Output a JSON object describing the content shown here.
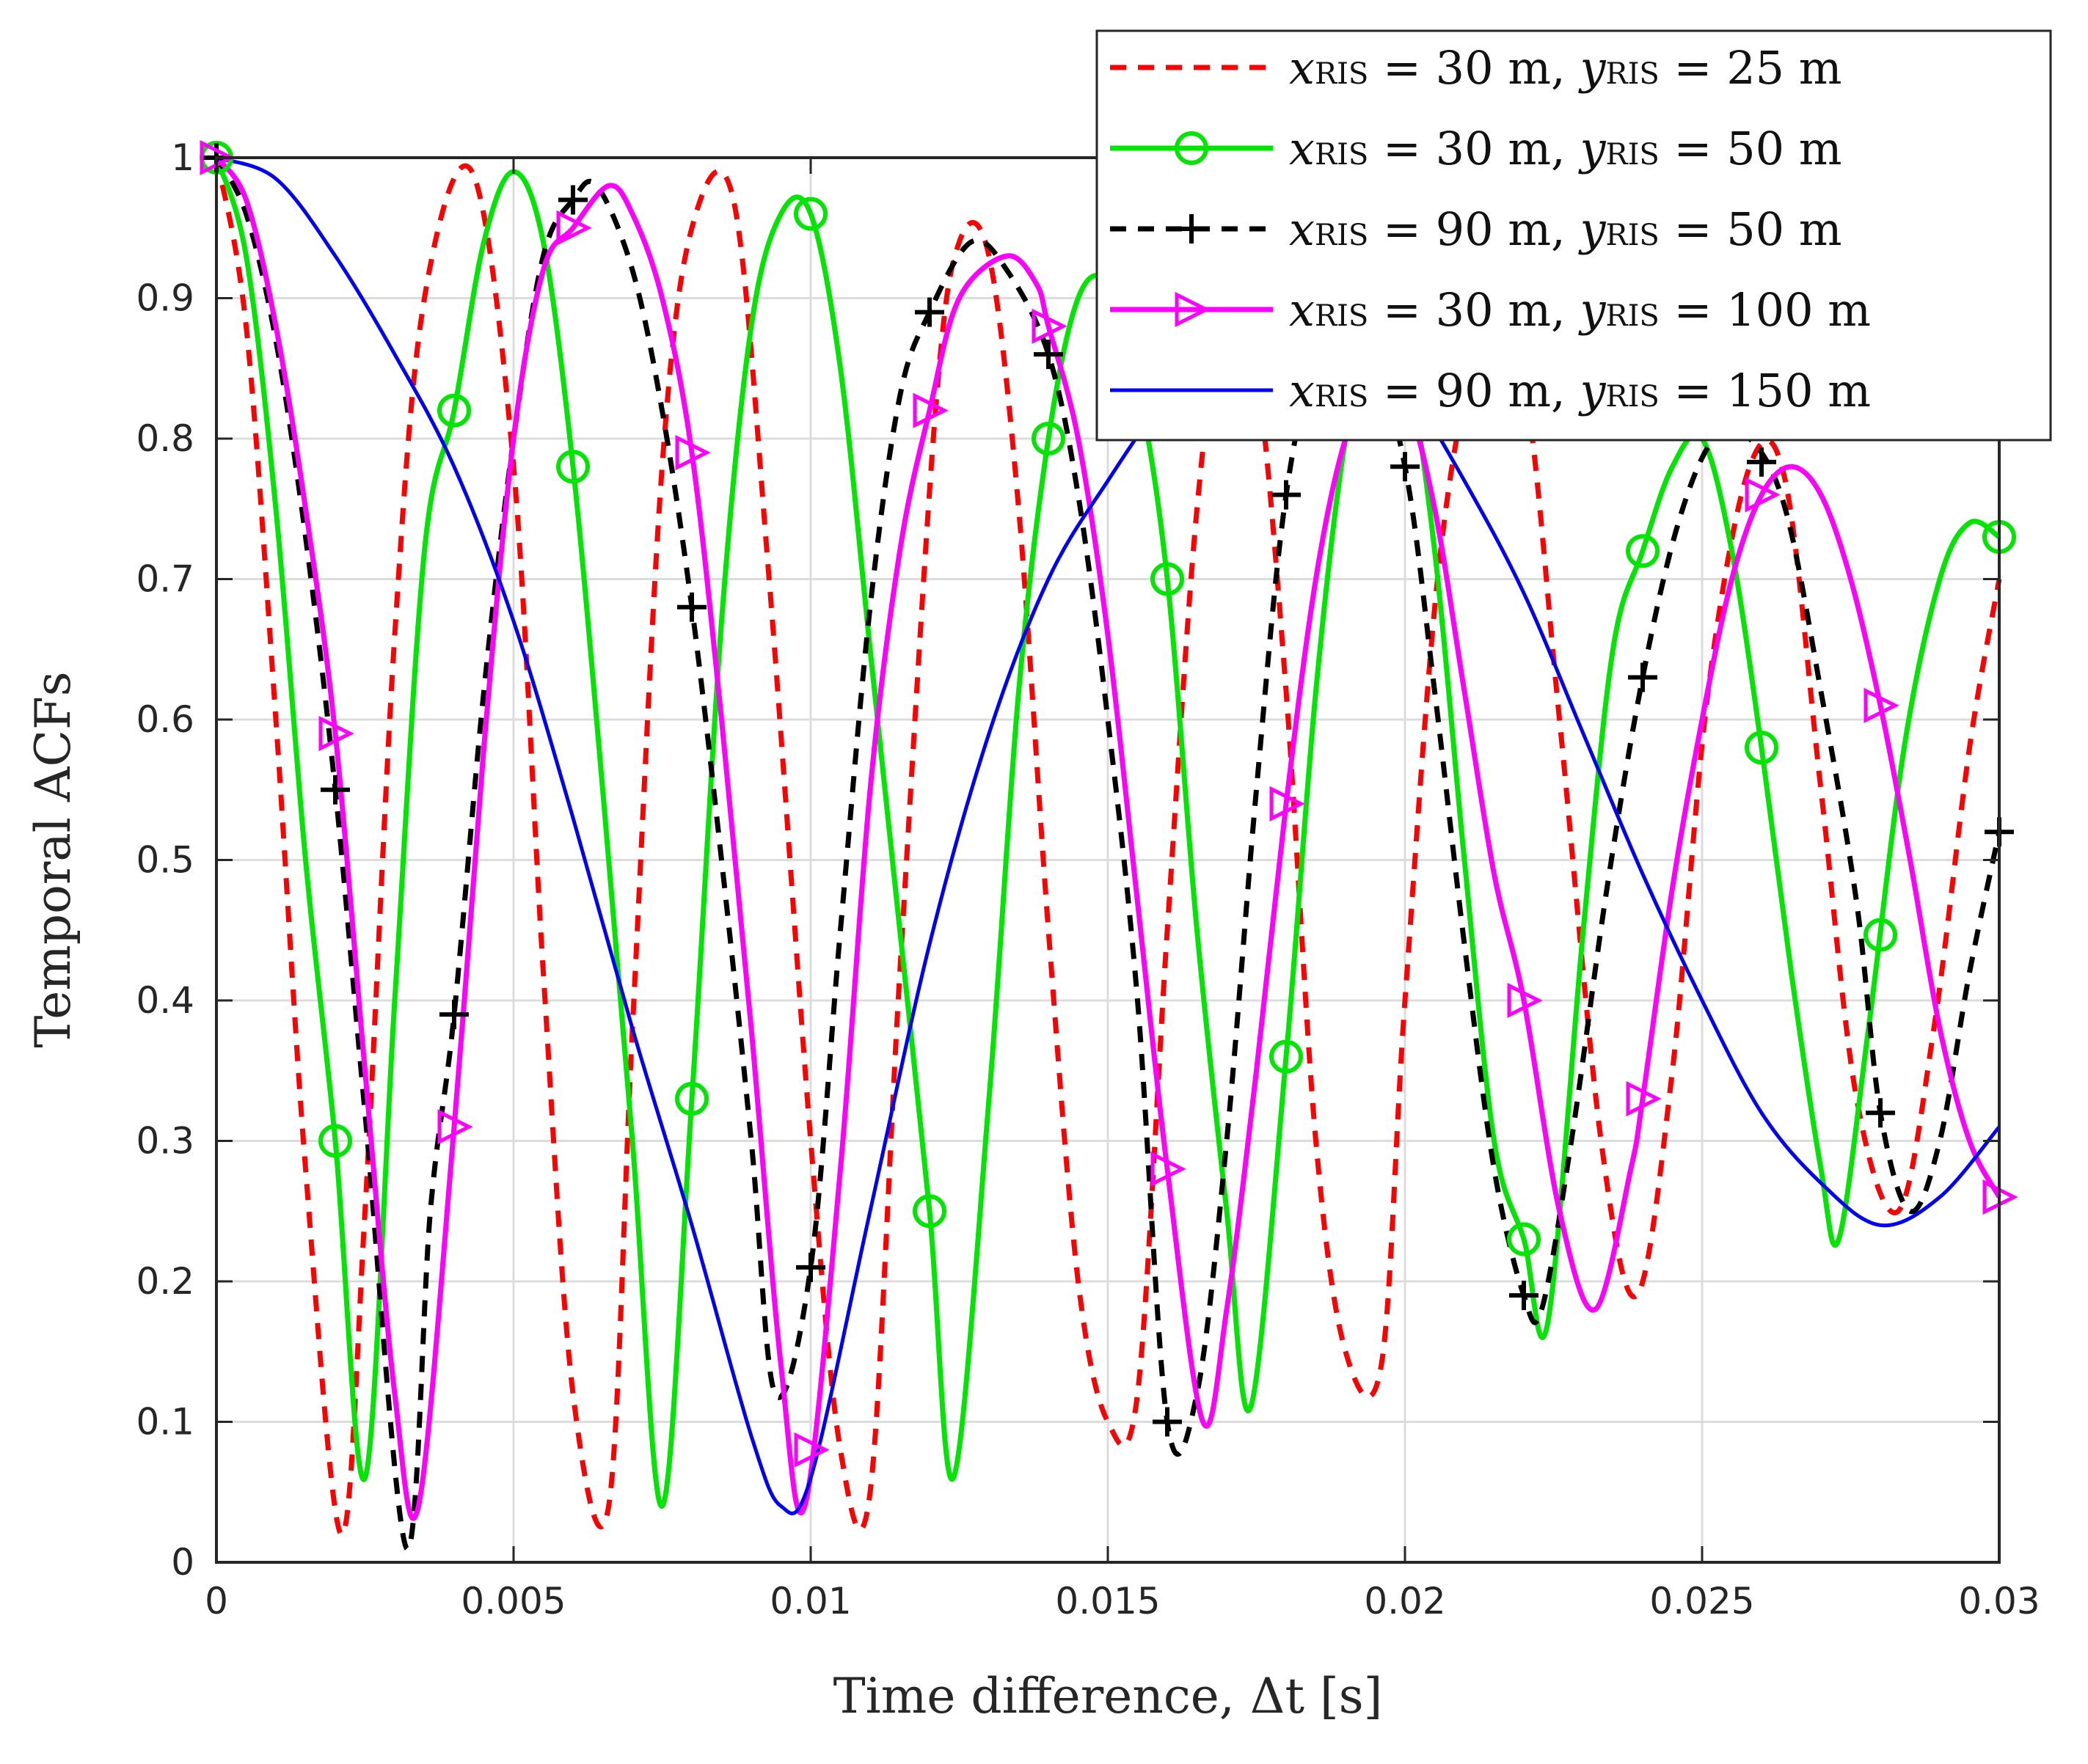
{
  "chart_data": {
    "type": "line",
    "title": "",
    "xlabel": "Time difference, Δt [s]",
    "ylabel": "Temporal ACFs",
    "xlim": [
      0,
      0.03
    ],
    "ylim": [
      0,
      1
    ],
    "grid": true,
    "legend_position": "top-right",
    "x_ticks": [
      0,
      0.005,
      0.01,
      0.015,
      0.02,
      0.025,
      0.03
    ],
    "x_tick_labels": [
      "0",
      "0.005",
      "0.01",
      "0.015",
      "0.02",
      "0.025",
      "0.03"
    ],
    "y_ticks": [
      0,
      0.1,
      0.2,
      0.3,
      0.4,
      0.5,
      0.6,
      0.7,
      0.8,
      0.9,
      1
    ],
    "y_tick_labels": [
      "0",
      "0.1",
      "0.2",
      "0.3",
      "0.4",
      "0.5",
      "0.6",
      "0.7",
      "0.8",
      "0.9",
      "1"
    ],
    "series": [
      {
        "name": "x_RIS = 30 m, y_RIS = 25 m",
        "legend": {
          "xval": "30 m",
          "yval": "25 m"
        },
        "color": "#ff0000",
        "style": "dashed",
        "marker": "none",
        "x": [
          0,
          0.0005,
          0.001,
          0.0015,
          0.0021,
          0.0025,
          0.003,
          0.0035,
          0.0043,
          0.005,
          0.0055,
          0.006,
          0.0066,
          0.007,
          0.0075,
          0.008,
          0.0087,
          0.0093,
          0.01,
          0.0105,
          0.011,
          0.0115,
          0.0121,
          0.0125,
          0.013,
          0.0135,
          0.014,
          0.0145,
          0.015,
          0.0155,
          0.016,
          0.0165,
          0.017,
          0.0175,
          0.018,
          0.0185,
          0.019,
          0.0196,
          0.02,
          0.0206,
          0.0213,
          0.022,
          0.0226,
          0.0233,
          0.0239,
          0.0245,
          0.0251,
          0.0258,
          0.0264,
          0.027,
          0.0276,
          0.0283,
          0.0289,
          0.0295,
          0.03
        ],
        "y": [
          1.0,
          0.88,
          0.6,
          0.28,
          0.02,
          0.25,
          0.66,
          0.9,
          0.99,
          0.78,
          0.42,
          0.12,
          0.04,
          0.38,
          0.78,
          0.95,
          0.97,
          0.7,
          0.3,
          0.08,
          0.05,
          0.42,
          0.82,
          0.94,
          0.93,
          0.75,
          0.45,
          0.2,
          0.1,
          0.12,
          0.45,
          0.75,
          0.9,
          0.85,
          0.62,
          0.3,
          0.15,
          0.14,
          0.4,
          0.72,
          0.87,
          0.84,
          0.6,
          0.3,
          0.19,
          0.35,
          0.62,
          0.78,
          0.77,
          0.55,
          0.33,
          0.25,
          0.38,
          0.58,
          0.7
        ]
      },
      {
        "name": "x_RIS = 30 m, y_RIS = 50 m",
        "legend": {
          "xval": "30 m",
          "yval": "50 m"
        },
        "color": "#00e600",
        "style": "solid",
        "marker": "circle",
        "x": [
          0,
          0.0005,
          0.001,
          0.0015,
          0.002,
          0.0025,
          0.003,
          0.0035,
          0.004,
          0.0045,
          0.005,
          0.0055,
          0.006,
          0.0065,
          0.007,
          0.0075,
          0.008,
          0.0085,
          0.009,
          0.0095,
          0.01,
          0.0105,
          0.011,
          0.0115,
          0.012,
          0.0124,
          0.013,
          0.0135,
          0.014,
          0.0145,
          0.015,
          0.0155,
          0.016,
          0.0165,
          0.017,
          0.0174,
          0.018,
          0.0185,
          0.019,
          0.0195,
          0.02,
          0.0205,
          0.021,
          0.0215,
          0.022,
          0.0224,
          0.023,
          0.0235,
          0.024,
          0.0245,
          0.025,
          0.0255,
          0.026,
          0.0265,
          0.027,
          0.0273,
          0.0278,
          0.0284,
          0.029,
          0.0295,
          0.03
        ],
        "y": [
          1.0,
          0.93,
          0.75,
          0.5,
          0.3,
          0.06,
          0.4,
          0.72,
          0.82,
          0.94,
          0.99,
          0.94,
          0.78,
          0.55,
          0.3,
          0.04,
          0.33,
          0.67,
          0.88,
          0.96,
          0.96,
          0.85,
          0.65,
          0.45,
          0.25,
          0.06,
          0.33,
          0.62,
          0.8,
          0.9,
          0.91,
          0.84,
          0.7,
          0.45,
          0.25,
          0.11,
          0.36,
          0.62,
          0.8,
          0.88,
          0.86,
          0.72,
          0.5,
          0.3,
          0.23,
          0.17,
          0.45,
          0.65,
          0.72,
          0.78,
          0.8,
          0.72,
          0.58,
          0.42,
          0.28,
          0.23,
          0.38,
          0.58,
          0.7,
          0.74,
          0.73
        ]
      },
      {
        "name": "x_RIS = 90 m, y_RIS = 50 m",
        "legend": {
          "xval": "90 m",
          "yval": "50 m"
        },
        "color": "#000000",
        "style": "dashed",
        "marker": "plus",
        "x": [
          0,
          0.0005,
          0.001,
          0.0015,
          0.002,
          0.0025,
          0.0032,
          0.0036,
          0.004,
          0.0045,
          0.005,
          0.0055,
          0.006,
          0.0064,
          0.007,
          0.0075,
          0.008,
          0.0085,
          0.009,
          0.0094,
          0.01,
          0.0105,
          0.011,
          0.0115,
          0.012,
          0.0127,
          0.0133,
          0.014,
          0.0145,
          0.015,
          0.0155,
          0.016,
          0.0165,
          0.017,
          0.0175,
          0.018,
          0.0186,
          0.0193,
          0.02,
          0.0205,
          0.021,
          0.0215,
          0.022,
          0.0223,
          0.0228,
          0.0234,
          0.024,
          0.0246,
          0.0252,
          0.0258,
          0.0264,
          0.027,
          0.0276,
          0.028,
          0.0285,
          0.029,
          0.0295,
          0.03
        ],
        "y": [
          1.0,
          0.96,
          0.87,
          0.73,
          0.55,
          0.32,
          0.01,
          0.25,
          0.39,
          0.62,
          0.8,
          0.93,
          0.97,
          0.98,
          0.92,
          0.82,
          0.68,
          0.5,
          0.3,
          0.12,
          0.21,
          0.45,
          0.68,
          0.83,
          0.89,
          0.94,
          0.92,
          0.86,
          0.76,
          0.6,
          0.4,
          0.1,
          0.12,
          0.3,
          0.55,
          0.76,
          0.87,
          0.88,
          0.78,
          0.62,
          0.44,
          0.28,
          0.19,
          0.18,
          0.3,
          0.48,
          0.63,
          0.74,
          0.8,
          0.8,
          0.75,
          0.62,
          0.47,
          0.32,
          0.25,
          0.3,
          0.42,
          0.52
        ]
      },
      {
        "name": "x_RIS = 30 m, y_RIS = 100 m",
        "legend": {
          "xval": "30 m",
          "yval": "100 m"
        },
        "color": "#ff00ff",
        "style": "solid",
        "marker": "triangle-right",
        "x": [
          0,
          0.0005,
          0.001,
          0.0015,
          0.002,
          0.0025,
          0.003,
          0.0034,
          0.004,
          0.0045,
          0.005,
          0.0055,
          0.006,
          0.0066,
          0.007,
          0.0075,
          0.008,
          0.0085,
          0.009,
          0.0095,
          0.0099,
          0.0105,
          0.011,
          0.0115,
          0.012,
          0.0125,
          0.0133,
          0.0138,
          0.014,
          0.0145,
          0.015,
          0.0155,
          0.016,
          0.0166,
          0.017,
          0.0175,
          0.018,
          0.0185,
          0.019,
          0.0195,
          0.02,
          0.0205,
          0.021,
          0.0215,
          0.022,
          0.0226,
          0.0232,
          0.0238,
          0.024,
          0.0245,
          0.025,
          0.0255,
          0.026,
          0.0265,
          0.027,
          0.0275,
          0.028,
          0.0285,
          0.029,
          0.0295,
          0.03
        ],
        "y": [
          1.0,
          0.97,
          0.88,
          0.75,
          0.59,
          0.35,
          0.12,
          0.04,
          0.31,
          0.58,
          0.8,
          0.92,
          0.95,
          0.98,
          0.96,
          0.9,
          0.79,
          0.6,
          0.38,
          0.14,
          0.04,
          0.28,
          0.55,
          0.72,
          0.82,
          0.9,
          0.93,
          0.91,
          0.88,
          0.8,
          0.66,
          0.47,
          0.28,
          0.1,
          0.18,
          0.35,
          0.54,
          0.7,
          0.8,
          0.84,
          0.83,
          0.75,
          0.62,
          0.49,
          0.4,
          0.25,
          0.18,
          0.28,
          0.33,
          0.48,
          0.6,
          0.7,
          0.76,
          0.78,
          0.76,
          0.7,
          0.61,
          0.5,
          0.38,
          0.3,
          0.26
        ]
      },
      {
        "name": "x_RIS = 90 m, y_RIS = 150 m",
        "legend": {
          "xval": "90 m",
          "yval": "150 m"
        },
        "color": "#0000ff",
        "style": "solid",
        "marker": "none",
        "x": [
          0,
          0.001,
          0.002,
          0.003,
          0.004,
          0.005,
          0.006,
          0.007,
          0.008,
          0.009,
          0.0095,
          0.01,
          0.011,
          0.012,
          0.013,
          0.014,
          0.015,
          0.016,
          0.017,
          0.018,
          0.019,
          0.0195,
          0.02,
          0.021,
          0.022,
          0.023,
          0.024,
          0.025,
          0.026,
          0.027,
          0.028,
          0.029,
          0.03
        ],
        "y": [
          1.0,
          0.985,
          0.93,
          0.86,
          0.78,
          0.67,
          0.53,
          0.38,
          0.24,
          0.09,
          0.04,
          0.06,
          0.25,
          0.44,
          0.59,
          0.7,
          0.77,
          0.83,
          0.87,
          0.88,
          0.87,
          0.86,
          0.84,
          0.77,
          0.69,
          0.59,
          0.49,
          0.4,
          0.32,
          0.27,
          0.24,
          0.26,
          0.31
        ]
      }
    ]
  }
}
